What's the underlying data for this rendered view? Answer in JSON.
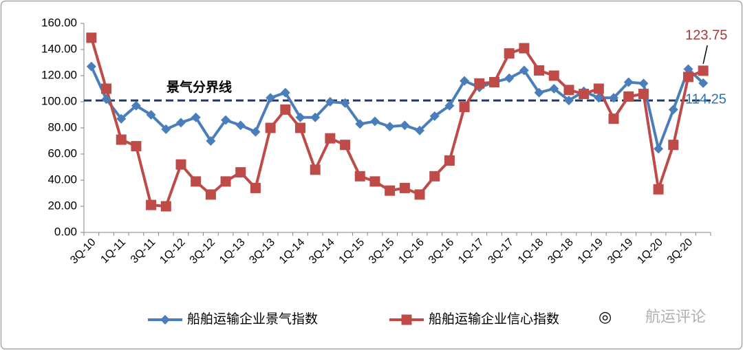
{
  "chart_data": {
    "type": "line",
    "categories": [
      "3Q-10",
      null,
      "1Q-11",
      null,
      "3Q-11",
      null,
      "1Q-12",
      null,
      "3Q-12",
      null,
      "1Q-13",
      null,
      "3Q-13",
      null,
      "1Q-14",
      null,
      "3Q-14",
      null,
      "1Q-15",
      null,
      "3Q-15",
      null,
      "1Q-16",
      null,
      "3Q-16",
      null,
      "1Q-17",
      null,
      "3Q-17",
      null,
      "1Q-18",
      null,
      "3Q-18",
      null,
      "1Q-19",
      null,
      "3Q-19",
      null,
      "1Q-20",
      null,
      "3Q-20",
      null
    ],
    "series": [
      {
        "name": "船舶运输企业景气指数",
        "color": "#4a7ebb",
        "marker": "diamond",
        "values": [
          127,
          102,
          87,
          97,
          90,
          79,
          84,
          88,
          70,
          86,
          82,
          77,
          103,
          107,
          88,
          88,
          100,
          99,
          83,
          85,
          81,
          82,
          78,
          89,
          97,
          116,
          111,
          115,
          118,
          124,
          107,
          110,
          101,
          108,
          103,
          103,
          115,
          114,
          64,
          94,
          125,
          114.25
        ],
        "label_color": "#2e75b6"
      },
      {
        "name": "船舶运输企业信心指数",
        "color": "#be4b48",
        "marker": "square",
        "values": [
          149,
          110,
          71,
          66,
          21,
          20,
          52,
          39,
          29,
          39,
          46,
          34,
          80,
          94,
          80,
          48,
          72,
          67,
          43,
          39,
          32,
          34,
          29,
          43,
          55,
          96,
          114,
          115,
          137,
          141,
          124,
          120,
          109,
          106,
          110,
          87,
          104,
          106,
          33,
          67,
          119,
          123.75
        ],
        "label_color": "#9e3a38"
      }
    ],
    "ylim": [
      0,
      160
    ],
    "yticks": [
      {
        "value": 0,
        "label": "0.00"
      },
      {
        "value": 20,
        "label": "20.00"
      },
      {
        "value": 40,
        "label": "40.00"
      },
      {
        "value": 60,
        "label": "60.00"
      },
      {
        "value": 80,
        "label": "80.00"
      },
      {
        "value": 100,
        "label": "100.00"
      },
      {
        "value": 120,
        "label": "120.00"
      },
      {
        "value": 140,
        "label": "140.00"
      },
      {
        "value": 160,
        "label": "160.00"
      }
    ],
    "grid": false,
    "reference_line": {
      "value": 101,
      "label": "景气分界线",
      "color": "#1f3864"
    },
    "legend": "bottom"
  },
  "watermark": "航运评论"
}
